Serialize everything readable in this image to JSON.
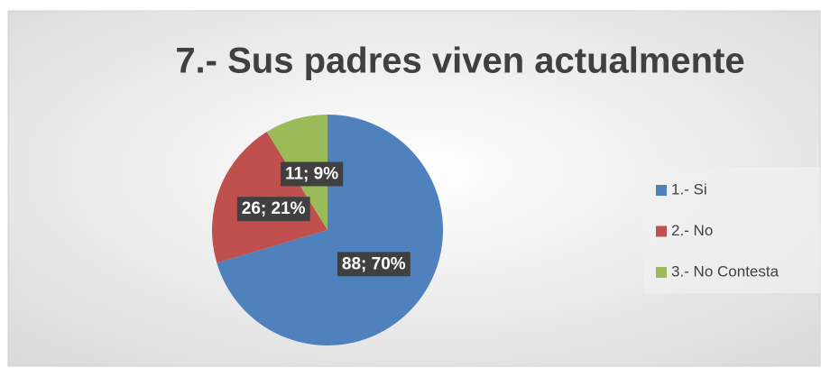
{
  "chart_data": {
    "type": "pie",
    "title": "7.- Sus padres viven actualmente",
    "categories": [
      "1.- Si",
      "2.- No",
      "3.- No Contesta"
    ],
    "values": [
      88,
      26,
      11
    ],
    "value_labels": [
      "88; 70%",
      "26; 21%",
      "11; 9%"
    ],
    "colors": [
      "#4f81bd",
      "#c0504d",
      "#9bbb59"
    ],
    "legend": "right"
  }
}
